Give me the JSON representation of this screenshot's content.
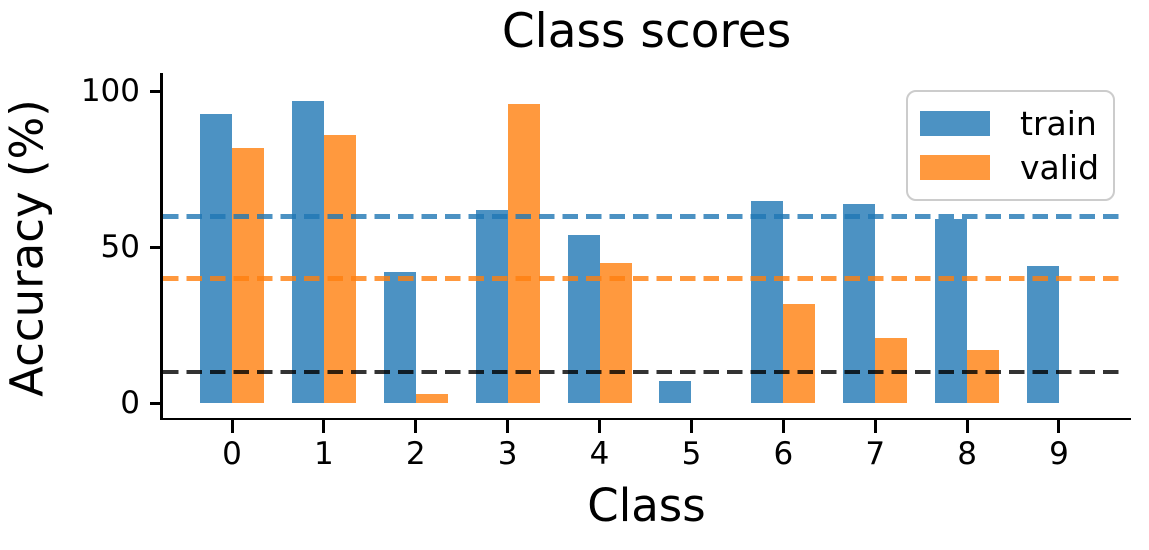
{
  "chart_data": {
    "type": "bar",
    "title": "Class scores",
    "xlabel": "Class",
    "ylabel": "Accuracy (%)",
    "categories": [
      "0",
      "1",
      "2",
      "3",
      "4",
      "5",
      "6",
      "7",
      "8",
      "9"
    ],
    "series": [
      {
        "name": "train",
        "color": "#1f77b4",
        "opacity": 0.8,
        "values": [
          93,
          97,
          42,
          62,
          54,
          7,
          65,
          64,
          59,
          44
        ]
      },
      {
        "name": "valid",
        "color": "#ff7f0e",
        "opacity": 0.8,
        "values": [
          82,
          86,
          3,
          96,
          45,
          0,
          32,
          21,
          17,
          0
        ]
      }
    ],
    "reference_lines": [
      {
        "value": 60,
        "color": "#1f77b4",
        "style": "dashed"
      },
      {
        "value": 40,
        "color": "#ff7f0e",
        "style": "dashed"
      },
      {
        "value": 10,
        "color": "#000000",
        "style": "dashed"
      }
    ],
    "yticks": [
      0,
      50,
      100
    ],
    "ylim": [
      -5,
      105
    ],
    "grid": false,
    "legend": {
      "position": "upper right",
      "entries": [
        "train",
        "valid"
      ]
    }
  }
}
